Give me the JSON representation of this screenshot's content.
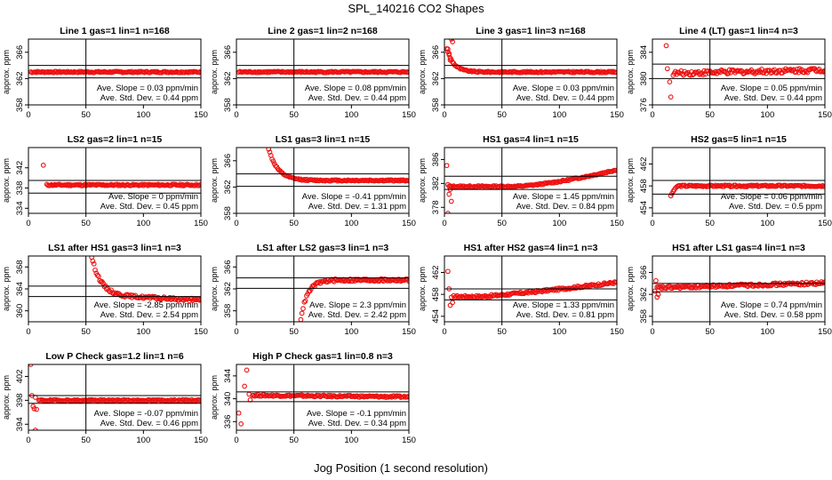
{
  "title": "SPL_140216  CO2 Shapes",
  "xlabel": "Jog Position (1 second resolution)",
  "ylabel": "approx. ppm",
  "slope_prefix": "Ave. Slope = ",
  "slope_unit": " ppm/min",
  "sd_prefix": "Ave. Std. Dev. = ",
  "sd_unit": " ppm",
  "colors": {
    "points": "#ee1111",
    "lines": "#000000",
    "background": "#ffffff"
  },
  "chart_data": [
    {
      "type": "scatter",
      "title": "Line 1 gas=1 lin=1 n=168",
      "xlim": [
        0,
        150
      ],
      "xticks": [
        0,
        50,
        100,
        150
      ],
      "ylim": [
        358,
        368
      ],
      "yticks": [
        358,
        362,
        366
      ],
      "hlines": [
        364,
        362.1
      ],
      "vline": 50,
      "slope": "0.03",
      "sd": "0.44",
      "shape": {
        "base": 363,
        "trend": 0,
        "noise": 0.1,
        "start": 2
      }
    },
    {
      "type": "scatter",
      "title": "Line 2 gas=1 lin=2 n=168",
      "xlim": [
        0,
        150
      ],
      "xticks": [
        0,
        50,
        100,
        150
      ],
      "ylim": [
        358,
        368
      ],
      "yticks": [
        358,
        362,
        366
      ],
      "hlines": [
        364,
        362.1
      ],
      "vline": 50,
      "slope": "0.08",
      "sd": "0.44",
      "shape": {
        "base": 363,
        "trend": 0,
        "noise": 0.1,
        "start": 2
      }
    },
    {
      "type": "scatter",
      "title": "Line 3 gas=1 lin=3 n=168",
      "xlim": [
        0,
        150
      ],
      "xticks": [
        0,
        50,
        100,
        150
      ],
      "ylim": [
        358,
        368
      ],
      "yticks": [
        358,
        362,
        366
      ],
      "hlines": [
        364,
        362.1
      ],
      "vline": 50,
      "slope": "0.03",
      "sd": "0.44",
      "shape": {
        "base": 363,
        "trend": 0,
        "noise": 0.1,
        "start": 2,
        "init": {
          "amp": 5,
          "tau": 6
        }
      },
      "extra": [
        [
          3,
          366.5
        ],
        [
          4,
          365.8
        ],
        [
          5,
          364.8
        ],
        [
          6,
          368
        ],
        [
          7,
          367.6
        ]
      ]
    },
    {
      "type": "scatter",
      "title": "Line 4 (LT) gas=1 lin=4 n=3",
      "xlim": [
        0,
        150
      ],
      "xticks": [
        0,
        50,
        100,
        150
      ],
      "ylim": [
        376,
        386
      ],
      "yticks": [
        376,
        380,
        384
      ],
      "hlines": [
        382.2,
        380
      ],
      "vline": 50,
      "slope": "0.05",
      "sd": "0.44",
      "shape": {
        "base": 380.8,
        "trend": 0.004,
        "noise": 0.35,
        "start": 18
      },
      "extra": [
        [
          12,
          385
        ],
        [
          13,
          381.5
        ],
        [
          15,
          379.5
        ],
        [
          16,
          377.2
        ]
      ]
    },
    {
      "type": "scatter",
      "title": "LS2 gas=2 lin=1 n=15",
      "xlim": [
        0,
        150
      ],
      "xticks": [
        0,
        50,
        100,
        150
      ],
      "ylim": [
        333,
        346
      ],
      "yticks": [
        334,
        338,
        342
      ],
      "hlines": [
        339.5,
        337
      ],
      "vline": 50,
      "slope": "0",
      "sd": "0.45",
      "shape": {
        "base": 338.6,
        "trend": 0,
        "noise": 0.15,
        "start": 16
      },
      "extra": [
        [
          13,
          342.5
        ]
      ]
    },
    {
      "type": "scatter",
      "title": "LS1 gas=3 lin=1 n=15",
      "xlim": [
        0,
        150
      ],
      "xticks": [
        0,
        50,
        100,
        150
      ],
      "ylim": [
        358,
        368
      ],
      "yticks": [
        358,
        362,
        366
      ],
      "hlines": [
        364,
        362.1
      ],
      "vline": 50,
      "slope": "-0.41",
      "sd": "1.31",
      "shape": {
        "base": 363,
        "trend": 0,
        "noise": 0.1,
        "start": 25,
        "init": {
          "amp": 7,
          "tau": 8,
          "from": 25
        }
      }
    },
    {
      "type": "scatter",
      "title": "HS1 gas=4 lin=1 n=15",
      "xlim": [
        0,
        150
      ],
      "xticks": [
        0,
        50,
        100,
        150
      ],
      "ylim": [
        377,
        388
      ],
      "yticks": [
        378,
        382,
        386
      ],
      "hlines": [
        383.2,
        381
      ],
      "vline": 50,
      "slope": "1.45",
      "sd": "0.84",
      "shape": {
        "base": 381.5,
        "trend": 0,
        "noise": 0.12,
        "start": 4,
        "curve": {
          "from": 60,
          "amp": 2.8,
          "pow": 1.5
        }
      },
      "extra": [
        [
          2,
          385
        ],
        [
          3,
          381.8
        ],
        [
          4,
          380.2
        ],
        [
          5,
          381
        ],
        [
          6,
          379
        ],
        [
          3,
          377
        ]
      ]
    },
    {
      "type": "scatter",
      "title": "HS2 gas=5 lin=1 n=15",
      "xlim": [
        0,
        150
      ],
      "xticks": [
        0,
        50,
        100,
        150
      ],
      "ylim": [
        453,
        465
      ],
      "yticks": [
        454,
        458,
        462
      ],
      "hlines": [
        459,
        456.5
      ],
      "vline": 50,
      "slope": "0.06",
      "sd": "0.5",
      "shape": {
        "base": 458,
        "trend": 0,
        "noise": 0.15,
        "start": 22
      },
      "extra": [
        [
          16,
          456.2
        ],
        [
          17,
          456.6
        ],
        [
          18,
          457
        ],
        [
          19,
          457.3
        ],
        [
          20,
          457.6
        ],
        [
          21,
          457.8
        ]
      ]
    },
    {
      "type": "scatter",
      "title": "LS1 after HS1 gas=3 lin=1 n=3",
      "xlim": [
        0,
        150
      ],
      "xticks": [
        0,
        50,
        100,
        150
      ],
      "ylim": [
        358,
        370
      ],
      "yticks": [
        360,
        364,
        368
      ],
      "hlines": [
        364.5,
        362.6
      ],
      "vline": 50,
      "slope": "-2.85",
      "sd": "2.54",
      "shape": {
        "base": 362.9,
        "trend": -0.01,
        "noise": 0.25,
        "start": 55,
        "init": {
          "amp": 7,
          "tau": 8,
          "from": 55
        }
      }
    },
    {
      "type": "scatter",
      "title": "LS1 after LS2 gas=3 lin=1 n=3",
      "xlim": [
        0,
        150
      ],
      "xticks": [
        0,
        50,
        100,
        150
      ],
      "ylim": [
        356,
        368
      ],
      "yticks": [
        358,
        362,
        366
      ],
      "hlines": [
        364,
        362.1
      ],
      "vline": 50,
      "slope": "2.3",
      "sd": "2.42",
      "shape": {
        "base": 363.6,
        "trend": 0,
        "noise": 0.25,
        "start": 56,
        "init": {
          "amp": -7,
          "tau": 6,
          "from": 56
        }
      }
    },
    {
      "type": "scatter",
      "title": "HS1 after HS2 gas=4 lin=1 n=3",
      "xlim": [
        0,
        150
      ],
      "xticks": [
        0,
        50,
        100,
        150
      ],
      "ylim": [
        453,
        465
      ],
      "yticks": [
        454,
        458,
        462
      ],
      "hlines": [
        459,
        457
      ],
      "vline": 50,
      "slope": "1.33",
      "sd": "0.81",
      "shape": {
        "base": 457.6,
        "trend": 0,
        "noise": 0.2,
        "start": 8,
        "curve": {
          "from": 30,
          "amp": 2.6,
          "pow": 1.2
        }
      },
      "extra": [
        [
          3,
          462.2
        ],
        [
          4,
          459
        ],
        [
          5,
          456
        ],
        [
          6,
          457.5
        ],
        [
          7,
          456.5
        ]
      ]
    },
    {
      "type": "scatter",
      "title": "HS1 after LS1 gas=4 lin=1 n=3",
      "xlim": [
        0,
        150
      ],
      "xticks": [
        0,
        50,
        100,
        150
      ],
      "ylim": [
        357,
        369
      ],
      "yticks": [
        358,
        362,
        366
      ],
      "hlines": [
        364,
        362.5
      ],
      "vline": 50,
      "slope": "0.74",
      "sd": "0.58",
      "shape": {
        "base": 363.2,
        "trend": 0.006,
        "noise": 0.25,
        "start": 4
      },
      "extra": [
        [
          2,
          362.6
        ],
        [
          3,
          364.5
        ],
        [
          4,
          361.5
        ],
        [
          5,
          362
        ]
      ]
    },
    {
      "type": "scatter",
      "title": "Low P Check gas=1.2 lin=1 n=6",
      "xlim": [
        0,
        150
      ],
      "xticks": [
        0,
        50,
        100,
        150
      ],
      "ylim": [
        393,
        404
      ],
      "yticks": [
        394,
        398,
        402
      ],
      "hlines": [
        398.8,
        397.5
      ],
      "vline": 50,
      "slope": "-0.07",
      "sd": "0.46",
      "shape": {
        "base": 398,
        "trend": 0,
        "noise": 0.12,
        "start": 9
      },
      "extra": [
        [
          2,
          404
        ],
        [
          3,
          398.8
        ],
        [
          4,
          397
        ],
        [
          5,
          396.6
        ],
        [
          6,
          398.5
        ],
        [
          7,
          396.5
        ],
        [
          6,
          393
        ]
      ]
    },
    {
      "type": "scatter",
      "title": "High P Check gas=1 lin=0.8 n=3",
      "xlim": [
        0,
        150
      ],
      "xticks": [
        0,
        50,
        100,
        150
      ],
      "ylim": [
        334.5,
        346
      ],
      "yticks": [
        336,
        340,
        344
      ],
      "hlines": [
        341.2,
        339.5
      ],
      "vline": 50,
      "slope": "-0.1",
      "sd": "0.34",
      "shape": {
        "base": 340.6,
        "trend": -0.002,
        "noise": 0.15,
        "start": 14
      },
      "extra": [
        [
          2,
          337.5
        ],
        [
          4,
          335.6
        ],
        [
          7,
          342.2
        ],
        [
          9,
          345
        ],
        [
          11,
          340.8
        ],
        [
          12,
          339.8
        ]
      ]
    }
  ]
}
